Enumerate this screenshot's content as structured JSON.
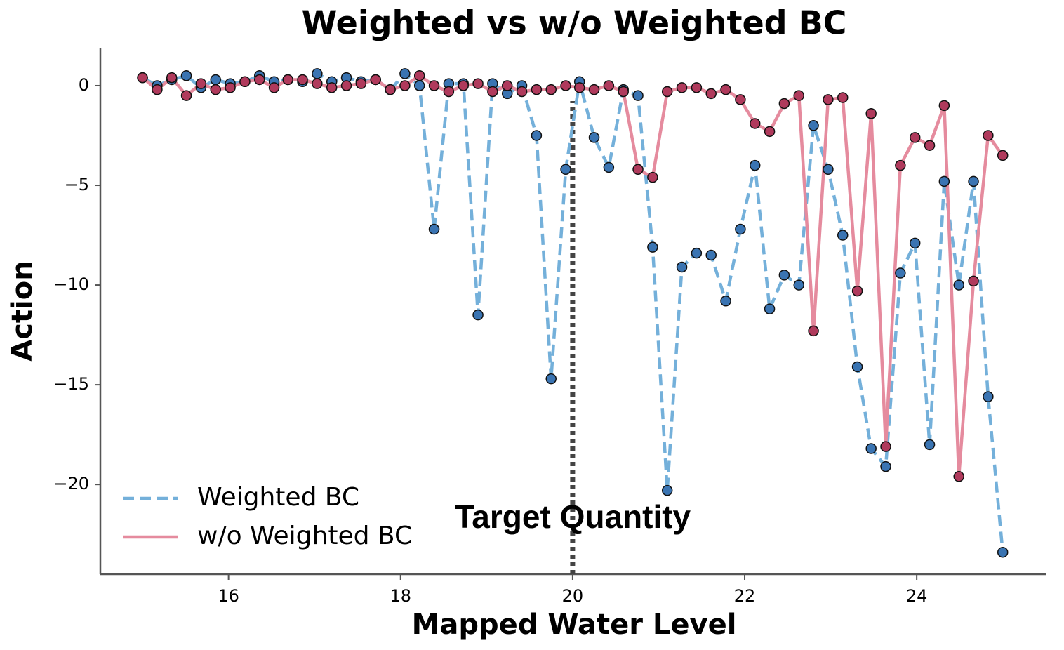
{
  "chart_data": {
    "type": "line",
    "title": "Weighted vs w/o Weighted BC",
    "x_label": "Mapped Water Level",
    "y_label": "Action",
    "x": [
      15.0,
      15.17,
      15.34,
      15.51,
      15.68,
      15.85,
      16.02,
      16.19,
      16.36,
      16.53,
      16.69,
      16.86,
      17.03,
      17.2,
      17.37,
      17.54,
      17.71,
      17.88,
      18.05,
      18.22,
      18.39,
      18.56,
      18.73,
      18.9,
      19.07,
      19.24,
      19.41,
      19.58,
      19.75,
      19.92,
      20.08,
      20.25,
      20.42,
      20.59,
      20.76,
      20.93,
      21.1,
      21.27,
      21.44,
      21.61,
      21.78,
      21.95,
      22.12,
      22.29,
      22.46,
      22.63,
      22.8,
      22.97,
      23.14,
      23.31,
      23.47,
      23.64,
      23.81,
      23.98,
      24.15,
      24.32,
      24.49,
      24.66,
      24.83,
      25.0
    ],
    "series": [
      {
        "name": "Weighted BC",
        "color": "#74b0da",
        "marker_color": "#3a74b2",
        "linestyle": "dashed",
        "values": [
          0.4,
          0,
          0.3,
          0.5,
          -0.1,
          0.3,
          0.1,
          0.2,
          0.5,
          0.2,
          0.3,
          0.2,
          0.6,
          0.2,
          0.4,
          0.2,
          0.3,
          -0.2,
          0.6,
          0,
          -7.2,
          0.1,
          0.1,
          -11.5,
          0.1,
          -0.4,
          0,
          -2.5,
          -14.7,
          -4.2,
          0.2,
          -2.6,
          -4.1,
          -0.2,
          -0.5,
          -8.1,
          -20.3,
          -9.1,
          -8.4,
          -8.5,
          -10.8,
          -7.2,
          -4.0,
          -11.2,
          -9.5,
          -10.0,
          -2.0,
          -4.2,
          -7.5,
          -14.1,
          -18.2,
          -19.1,
          -9.4,
          -7.9,
          -18.0,
          -4.8,
          -10.0,
          -4.8,
          -15.6,
          -23.4
        ]
      },
      {
        "name": "w/o Weighted BC",
        "color": "#e58b9e",
        "marker_color": "#b03a5c",
        "linestyle": "solid",
        "values": [
          0.4,
          -0.2,
          0.4,
          -0.5,
          0.1,
          -0.2,
          -0.1,
          0.2,
          0.3,
          -0.1,
          0.3,
          0.3,
          0.1,
          -0.1,
          0,
          0.1,
          0.3,
          -0.2,
          0,
          0.5,
          0,
          -0.3,
          0,
          0.1,
          -0.3,
          0,
          -0.3,
          -0.2,
          -0.2,
          0,
          -0.1,
          -0.2,
          0,
          -0.3,
          -4.2,
          -4.6,
          -0.3,
          -0.1,
          -0.1,
          -0.4,
          -0.2,
          -0.7,
          -1.9,
          -2.3,
          -0.9,
          -0.5,
          -12.3,
          -0.7,
          -0.6,
          -10.3,
          -1.4,
          -18.1,
          -4.0,
          -2.6,
          -3.0,
          -1.0,
          -19.6,
          -9.8,
          -2.5,
          -3.5
        ]
      }
    ],
    "xlim": [
      14.51,
      25.5
    ],
    "ylim": [
      -24.5,
      1.9
    ],
    "xticks": [
      16,
      18,
      20,
      22,
      24
    ],
    "yticks": [
      0,
      {
        "value": -5,
        "label": "−5"
      },
      {
        "value": -10,
        "label": "−10"
      },
      {
        "value": -15,
        "label": "−15"
      },
      {
        "value": -20,
        "label": "−20"
      }
    ],
    "vline": {
      "x": 20,
      "label": "Target Quantity"
    },
    "legend": "lower left",
    "grid": false
  }
}
